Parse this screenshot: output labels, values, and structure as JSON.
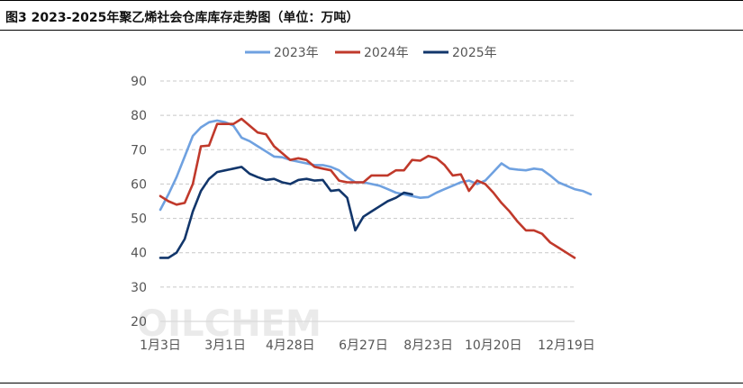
{
  "header": {
    "title": "图3 2023-2025年聚乙烯社会仓库库存走势图（单位：万吨）"
  },
  "watermark": "OILCHEM",
  "chart_data": {
    "type": "line",
    "title": "图3 2023-2025年聚乙烯社会仓库库存走势图（单位：万吨）",
    "ylim": [
      20,
      90
    ],
    "yticks": [
      20,
      30,
      40,
      50,
      60,
      70,
      80,
      90
    ],
    "ygrid": true,
    "legend_position": "top",
    "x_tick_labels": [
      "1月3日",
      "3月1日",
      "4月28日",
      "6月27日",
      "8月23日",
      "10月20日",
      "12月19日"
    ],
    "x_tick_week_index": [
      0,
      8,
      16,
      25,
      33,
      41,
      50
    ],
    "series": [
      {
        "name": "2023年",
        "color": "#6fa1e0",
        "values": [
          52.5,
          57,
          62,
          68,
          74,
          76.5,
          78,
          78.5,
          78,
          77,
          73.5,
          72.5,
          71,
          69.5,
          68,
          67.8,
          67,
          66.5,
          66,
          65.5,
          65.5,
          65,
          64,
          62,
          60.5,
          60.5,
          60,
          59.5,
          58.5,
          57.5,
          57,
          56.5,
          56,
          56.2,
          57.5,
          58.5,
          59.5,
          60.5,
          61,
          60,
          61,
          63.5,
          66,
          64.5,
          64.2,
          64,
          64.5,
          64.2,
          62.5,
          60.5,
          59.5,
          58.5,
          58,
          57
        ]
      },
      {
        "name": "2024年",
        "color": "#c0392b",
        "values": [
          56.5,
          55,
          54,
          54.5,
          60,
          71,
          71.2,
          77.5,
          77.5,
          77.5,
          79,
          77,
          75,
          74.5,
          71,
          69,
          67,
          67.5,
          67,
          65,
          64.5,
          64,
          61,
          60.5,
          60.5,
          60.5,
          62.5,
          62.5,
          62.5,
          64,
          64,
          67,
          66.8,
          68.2,
          67.5,
          65.5,
          62.5,
          62.8,
          58,
          61,
          60,
          57.5,
          54.5,
          52,
          49,
          46.5,
          46.5,
          45.5,
          43,
          41.5,
          40,
          38.5
        ]
      },
      {
        "name": "2025年",
        "color": "#12366b",
        "values": [
          38.5,
          38.5,
          40,
          44,
          52,
          58,
          61.5,
          63.5,
          64,
          64.5,
          65,
          63,
          62,
          61.2,
          61.5,
          60.5,
          60,
          61.2,
          61.5,
          61,
          61.2,
          58,
          58.3,
          56,
          46.5,
          50.5,
          52,
          53.5,
          55,
          56,
          57.5,
          57
        ]
      }
    ]
  }
}
